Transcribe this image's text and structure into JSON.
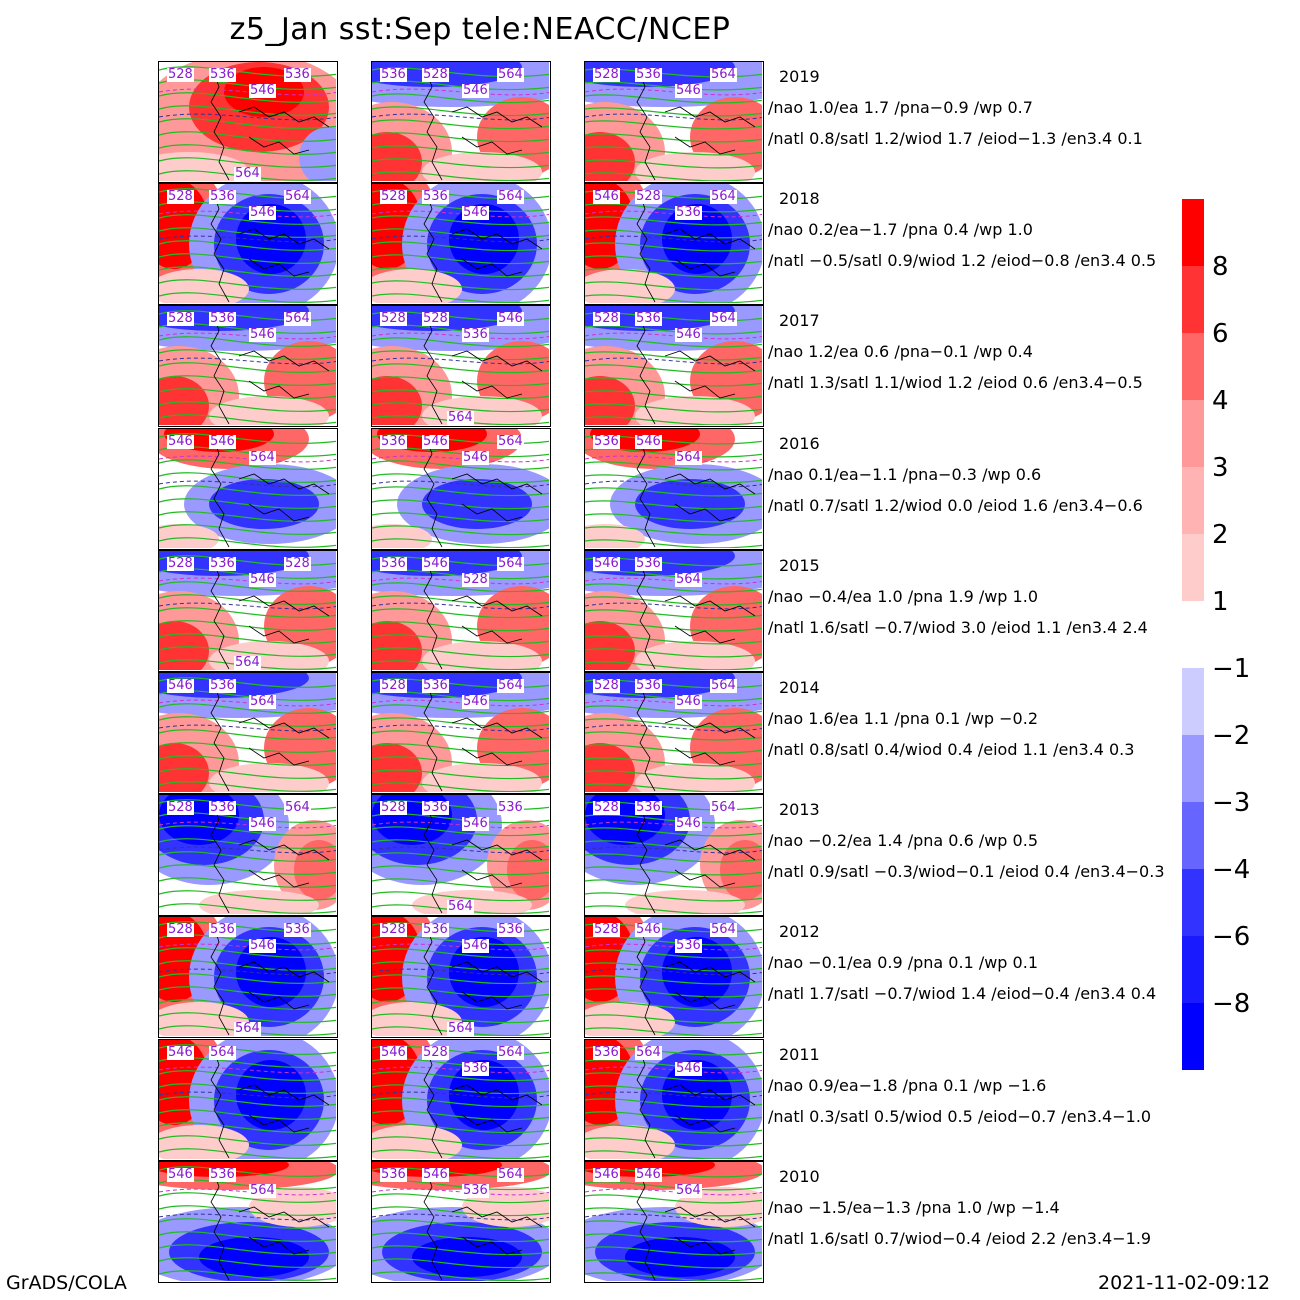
{
  "title": "z5_Jan sst:Sep tele:NEACC/NCEP",
  "footer": {
    "left": "GrADS/COLA",
    "right": "2021-11-02-09:12"
  },
  "rows": [
    {
      "year": "2019",
      "line1": "/nao  1.0/ea 1.7 /pna−0.9 /wp  0.7",
      "line2": "/natl  0.8/satl  1.2/wiod 1.7 /eiod−1.3 /en3.4 0.1",
      "panels": [
        {
          "pattern": "north_red",
          "labels": [
            "528",
            "536",
            "546",
            "536",
            "564"
          ]
        },
        {
          "pattern": "north_blue",
          "labels": [
            "536",
            "528",
            "546",
            "564"
          ]
        },
        {
          "pattern": "north_blue",
          "labels": [
            "528",
            "536",
            "546",
            "564"
          ]
        }
      ]
    },
    {
      "year": "2018",
      "line1": "/nao  0.2/ea−1.7 /pna 0.4 /wp  1.0",
      "line2": "/natl −0.5/satl  0.9/wiod 1.2 /eiod−0.8 /en3.4 0.5",
      "panels": [
        {
          "pattern": "center_blue",
          "labels": [
            "528",
            "536",
            "546",
            "564"
          ]
        },
        {
          "pattern": "center_blue",
          "labels": [
            "528",
            "536",
            "546",
            "564"
          ]
        },
        {
          "pattern": "center_blue",
          "labels": [
            "546",
            "528",
            "536",
            "564"
          ]
        }
      ]
    },
    {
      "year": "2017",
      "line1": "/nao  1.2/ea 0.6 /pna−0.1 /wp  0.4",
      "line2": "/natl  1.3/satl  1.1/wiod 1.2 /eiod 0.6 /en3.4−0.5",
      "panels": [
        {
          "pattern": "north_blue",
          "labels": [
            "528",
            "536",
            "546",
            "564"
          ]
        },
        {
          "pattern": "north_blue",
          "labels": [
            "528",
            "528",
            "536",
            "546",
            "564"
          ]
        },
        {
          "pattern": "north_blue",
          "labels": [
            "528",
            "536",
            "546",
            "564"
          ]
        }
      ]
    },
    {
      "year": "2016",
      "line1": "/nao  0.1/ea−1.1 /pna−0.3 /wp  0.6",
      "line2": "/natl  0.7/satl  1.2/wiod 0.0 /eiod 1.6 /en3.4−0.6",
      "panels": [
        {
          "pattern": "south_blue",
          "labels": [
            "546",
            "546",
            "564"
          ]
        },
        {
          "pattern": "south_blue",
          "labels": [
            "536",
            "546",
            "546",
            "564"
          ]
        },
        {
          "pattern": "south_blue",
          "labels": [
            "536",
            "546",
            "564"
          ]
        }
      ]
    },
    {
      "year": "2015",
      "line1": "/nao −0.4/ea 1.0 /pna 1.9 /wp  1.0",
      "line2": "/natl  1.6/satl −0.7/wiod 3.0 /eiod 1.1 /en3.4 2.4",
      "panels": [
        {
          "pattern": "north_blue",
          "labels": [
            "528",
            "536",
            "546",
            "528",
            "564"
          ]
        },
        {
          "pattern": "north_blue",
          "labels": [
            "536",
            "546",
            "528",
            "564"
          ]
        },
        {
          "pattern": "north_blue",
          "labels": [
            "546",
            "536",
            "564"
          ]
        }
      ]
    },
    {
      "year": "2014",
      "line1": "/nao  1.6/ea 1.1 /pna 0.1 /wp −0.2",
      "line2": "/natl  0.8/satl  0.4/wiod 0.4 /eiod 1.1 /en3.4 0.3",
      "panels": [
        {
          "pattern": "north_blue",
          "labels": [
            "546",
            "536",
            "564"
          ]
        },
        {
          "pattern": "north_blue",
          "labels": [
            "528",
            "536",
            "546",
            "564"
          ]
        },
        {
          "pattern": "north_blue",
          "labels": [
            "528",
            "536",
            "546",
            "564"
          ]
        }
      ]
    },
    {
      "year": "2013",
      "line1": "/nao −0.2/ea 1.4 /pna 0.6 /wp  0.5",
      "line2": "/natl  0.9/satl −0.3/wiod−0.1 /eiod 0.4 /en3.4−0.3",
      "panels": [
        {
          "pattern": "west_blue",
          "labels": [
            "528",
            "536",
            "546",
            "564"
          ]
        },
        {
          "pattern": "west_blue",
          "labels": [
            "528",
            "536",
            "546",
            "536",
            "564"
          ]
        },
        {
          "pattern": "west_blue",
          "labels": [
            "528",
            "536",
            "546",
            "564"
          ]
        }
      ]
    },
    {
      "year": "2012",
      "line1": "/nao −0.1/ea 0.9 /pna 0.1 /wp  0.1",
      "line2": "/natl  1.7/satl −0.7/wiod 1.4 /eiod−0.4 /en3.4 0.4",
      "panels": [
        {
          "pattern": "center_blue",
          "labels": [
            "528",
            "536",
            "546",
            "536",
            "564"
          ]
        },
        {
          "pattern": "center_blue",
          "labels": [
            "528",
            "536",
            "546",
            "536",
            "564"
          ]
        },
        {
          "pattern": "center_blue",
          "labels": [
            "528",
            "546",
            "536",
            "564"
          ]
        }
      ]
    },
    {
      "year": "2011",
      "line1": "/nao  0.9/ea−1.8 /pna 0.1 /wp −1.6",
      "line2": "/natl  0.3/satl  0.5/wiod 0.5 /eiod−0.7 /en3.4−1.0",
      "panels": [
        {
          "pattern": "center_blue",
          "labels": [
            "546",
            "564"
          ]
        },
        {
          "pattern": "center_blue",
          "labels": [
            "546",
            "528",
            "536",
            "564"
          ]
        },
        {
          "pattern": "center_blue",
          "labels": [
            "536",
            "564",
            "546"
          ]
        }
      ]
    },
    {
      "year": "2010",
      "line1": "/nao −1.5/ea−1.3 /pna 1.0 /wp −1.4",
      "line2": "/natl  1.6/satl  0.7/wiod−0.4 /eiod 2.2 /en3.4−1.9",
      "panels": [
        {
          "pattern": "south_blue2",
          "labels": [
            "546",
            "536",
            "564"
          ]
        },
        {
          "pattern": "south_blue2",
          "labels": [
            "536",
            "546",
            "536",
            "564"
          ]
        },
        {
          "pattern": "south_blue2",
          "labels": [
            "546",
            "546",
            "564"
          ]
        }
      ]
    }
  ],
  "colorbar": {
    "positive": {
      "colors": [
        "#ff0000",
        "#ff3333",
        "#ff6666",
        "#ff9999",
        "#ffb3b3",
        "#ffcccc"
      ],
      "labels": [
        "8",
        "6",
        "4",
        "3",
        "2",
        "1"
      ]
    },
    "negative": {
      "colors": [
        "#ccccff",
        "#9999ff",
        "#6666ff",
        "#3333ff",
        "#1a1aff",
        "#0000ff"
      ],
      "labels": [
        "−1",
        "−2",
        "−3",
        "−4",
        "−6",
        "−8"
      ]
    }
  }
}
